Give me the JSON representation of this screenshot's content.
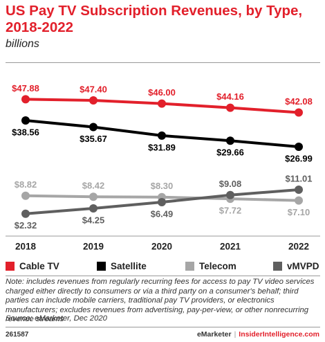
{
  "header": {
    "title": "US Pay TV Subscription Revenues, by Type, 2018-2022",
    "subtitle": "billions"
  },
  "colors": {
    "cable_tv": "#e2202b",
    "satellite": "#000000",
    "telecom": "#a6a6a6",
    "vmvpd": "#5f5f5f"
  },
  "chart_data": {
    "type": "line",
    "categories": [
      "2018",
      "2019",
      "2020",
      "2021",
      "2022"
    ],
    "ylim": [
      0,
      50
    ],
    "grid": false,
    "legend_placement": "bottom",
    "series": [
      {
        "name": "Cable TV",
        "color": "#e2202b",
        "values": [
          47.88,
          47.4,
          46.0,
          44.16,
          42.08
        ],
        "labels": [
          "$47.88",
          "$47.40",
          "$46.00",
          "$44.16",
          "$42.08"
        ]
      },
      {
        "name": "Satellite",
        "color": "#000000",
        "values": [
          38.56,
          35.67,
          31.89,
          29.66,
          26.99
        ],
        "labels": [
          "$38.56",
          "$35.67",
          "$31.89",
          "$29.66",
          "$26.99"
        ]
      },
      {
        "name": "Telecom",
        "color": "#a6a6a6",
        "values": [
          8.82,
          8.42,
          8.3,
          7.72,
          7.1
        ],
        "labels": [
          "$8.82",
          "$8.42",
          "$8.30",
          "$7.72",
          "$7.10"
        ]
      },
      {
        "name": "vMVPD",
        "color": "#5f5f5f",
        "values": [
          2.32,
          4.25,
          6.49,
          9.08,
          11.01
        ],
        "labels": [
          "$2.32",
          "$4.25",
          "$6.49",
          "$9.08",
          "$11.01"
        ]
      }
    ]
  },
  "note": "Note: includes revenues from regularly recurring fees for access to pay TV video services charged either directly to consumers or via a third party on a consumer's behalf; third parties can include mobile carriers, traditional pay TV providers, or electronics manufacturers; excludes revenues from advertising, pay-per-view, or other nonrecurring revenue streams",
  "source": "Source: eMarketer, Dec 2020",
  "footer": {
    "id": "261587",
    "brand": "eMarketer",
    "separator": "|",
    "brand_site": "InsiderIntelligence.com"
  }
}
